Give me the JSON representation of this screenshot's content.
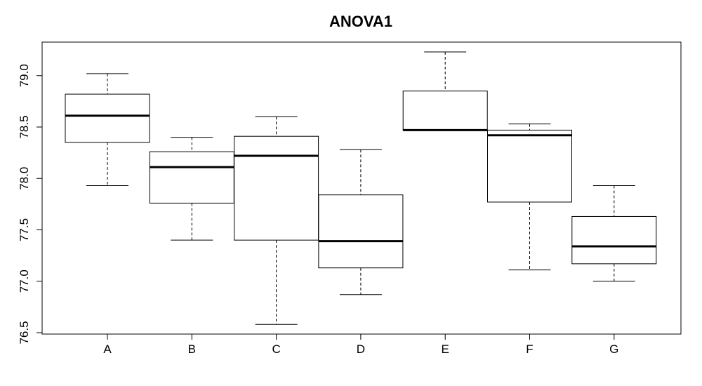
{
  "chart_data": {
    "type": "boxplot",
    "title": "ANOVA1",
    "xlabel": "",
    "ylabel": "",
    "ylim": [
      76.5,
      79.3
    ],
    "yticks": [
      "76.5",
      "77.0",
      "77.5",
      "78.0",
      "78.5",
      "79.0"
    ],
    "grid": false,
    "categories": [
      "A",
      "B",
      "C",
      "D",
      "E",
      "F",
      "G"
    ],
    "boxes": [
      {
        "label": "A",
        "whisker_low": 77.93,
        "q1": 78.35,
        "median": 78.61,
        "q3": 78.82,
        "whisker_high": 79.02
      },
      {
        "label": "B",
        "whisker_low": 77.4,
        "q1": 77.76,
        "median": 78.11,
        "q3": 78.26,
        "whisker_high": 78.4
      },
      {
        "label": "C",
        "whisker_low": 76.58,
        "q1": 77.4,
        "median": 78.22,
        "q3": 78.41,
        "whisker_high": 78.6
      },
      {
        "label": "D",
        "whisker_low": 76.87,
        "q1": 77.13,
        "median": 77.39,
        "q3": 77.84,
        "whisker_high": 78.28
      },
      {
        "label": "E",
        "whisker_low": 78.47,
        "q1": 78.47,
        "median": 78.47,
        "q3": 78.85,
        "whisker_high": 79.23
      },
      {
        "label": "F",
        "whisker_low": 77.11,
        "q1": 77.77,
        "median": 78.42,
        "q3": 78.47,
        "whisker_high": 78.53
      },
      {
        "label": "G",
        "whisker_low": 77.0,
        "q1": 77.17,
        "median": 77.34,
        "q3": 77.63,
        "whisker_high": 77.93
      }
    ]
  }
}
